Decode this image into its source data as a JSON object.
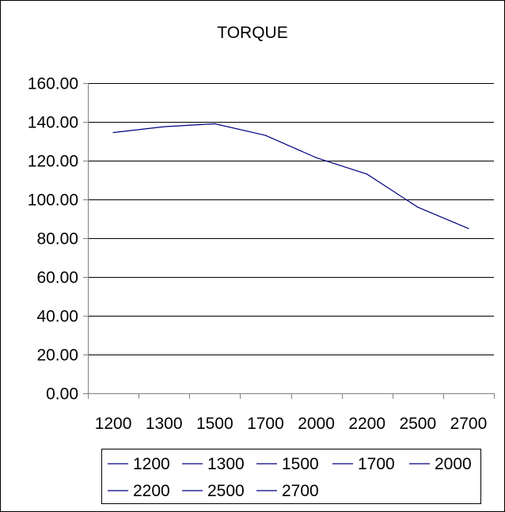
{
  "chart_data": {
    "type": "line",
    "title": "TORQUE",
    "categories": [
      "1200",
      "1300",
      "1500",
      "1700",
      "2000",
      "2200",
      "2500",
      "2700"
    ],
    "values": [
      134.5,
      137.5,
      139.0,
      133.0,
      121.5,
      113.0,
      96.0,
      85.0
    ],
    "ylim": [
      0,
      160
    ],
    "y_ticks": [
      "0.00",
      "20.00",
      "40.00",
      "60.00",
      "80.00",
      "100.00",
      "120.00",
      "140.00",
      "160.00"
    ],
    "xlabel": "",
    "ylabel": "",
    "grid": true,
    "legend": {
      "placement": "bottom",
      "entries": [
        "1200",
        "1300",
        "1500",
        "1700",
        "2000",
        "2200",
        "2500",
        "2700"
      ]
    },
    "colors": {
      "series_line": "#000080",
      "gridline": "#000000",
      "axis": "#808080",
      "background": "#ffffff"
    }
  }
}
